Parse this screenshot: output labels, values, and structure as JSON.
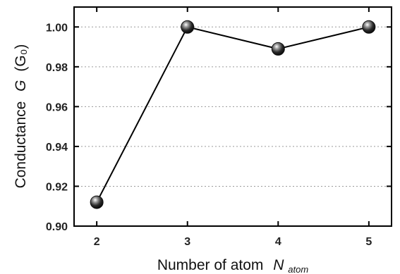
{
  "chart_data": {
    "type": "line",
    "x": [
      2,
      3,
      4,
      5
    ],
    "y": [
      0.912,
      1.0,
      0.989,
      1.0
    ],
    "xticks": [
      "2",
      "3",
      "4",
      "5"
    ],
    "yticks": [
      "0.90",
      "0.92",
      "0.94",
      "0.96",
      "0.98",
      "1.00"
    ],
    "xlim": [
      1.75,
      5.25
    ],
    "ylim": [
      0.9,
      1.01
    ],
    "grid": "horizontal dotted",
    "xlabel": {
      "text": "Number of atom",
      "symbol": "N",
      "subscript": "atom"
    },
    "ylabel": {
      "text": "Conductance",
      "symbol": "G",
      "unit": "(G₀)"
    },
    "line_color": "#000000",
    "marker": "sphere",
    "marker_color": "#111111"
  }
}
